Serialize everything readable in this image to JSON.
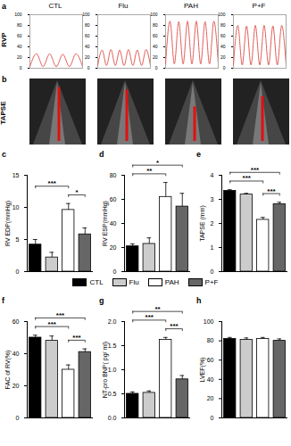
{
  "chart_data": [
    {
      "type": "line",
      "title": "a",
      "ylabel": "RVP",
      "ylim": [
        0,
        100
      ],
      "yticks": [
        0,
        20,
        40,
        60,
        80,
        100
      ],
      "color": "#e0605a",
      "series": [
        {
          "name": "CTL",
          "values": [
            3,
            27,
            3,
            27,
            3,
            26,
            3,
            27,
            3
          ]
        },
        {
          "name": "Flu",
          "values": [
            5,
            34,
            5,
            35,
            5,
            34,
            5,
            35,
            5,
            34,
            5,
            35,
            5
          ]
        },
        {
          "name": "PAH",
          "values": [
            8,
            88,
            8,
            87,
            8,
            88,
            8,
            88,
            8,
            87,
            8,
            88,
            8
          ]
        },
        {
          "name": "P+F",
          "values": [
            6,
            80,
            6,
            79,
            6,
            80,
            6,
            80,
            6,
            79,
            6,
            80,
            6
          ]
        }
      ]
    },
    {
      "type": "image",
      "title": "b",
      "ylabel": "TAPSE",
      "categories": [
        "CTL",
        "Flu",
        "PAH",
        "P+F"
      ],
      "color": "#e01010"
    },
    {
      "type": "bar",
      "title": "c",
      "ylabel": "RV EDP(mmHg)",
      "categories": [
        "CTL",
        "Flu",
        "PAH",
        "P+F"
      ],
      "values": [
        4.2,
        2.2,
        9.6,
        5.8
      ],
      "errors": [
        0.8,
        0.8,
        1.0,
        1.0
      ],
      "colors": [
        "#000000",
        "#cccccc",
        "#ffffff",
        "#666666"
      ],
      "ylim": [
        0,
        15
      ],
      "yticks": [
        0,
        5,
        10,
        15
      ],
      "significance": [
        {
          "from": "PAH",
          "to": "P+F",
          "label": "*"
        },
        {
          "from": "CTL",
          "to": "PAH",
          "label": "***"
        }
      ]
    },
    {
      "type": "bar",
      "title": "d",
      "ylabel": "RV ESP(mmHg)",
      "categories": [
        "CTL",
        "Flu",
        "PAH",
        "P+F"
      ],
      "values": [
        21,
        23,
        62,
        54
      ],
      "errors": [
        2,
        5,
        12,
        11
      ],
      "colors": [
        "#000000",
        "#cccccc",
        "#ffffff",
        "#666666"
      ],
      "ylim": [
        0,
        80
      ],
      "yticks": [
        0,
        20,
        40,
        60,
        80
      ],
      "significance": [
        {
          "from": "CTL",
          "to": "PAH",
          "label": "**"
        },
        {
          "from": "CTL",
          "to": "P+F",
          "label": "*"
        }
      ]
    },
    {
      "type": "bar",
      "title": "e",
      "ylabel": "TAPSE (mm)",
      "categories": [
        "CTL",
        "Flu",
        "PAH",
        "P+F"
      ],
      "values": [
        3.35,
        3.2,
        2.15,
        2.8
      ],
      "errors": [
        0.05,
        0.05,
        0.1,
        0.08
      ],
      "colors": [
        "#000000",
        "#cccccc",
        "#ffffff",
        "#666666"
      ],
      "ylim": [
        0,
        4
      ],
      "yticks": [
        0,
        1,
        2,
        3,
        4
      ],
      "significance": [
        {
          "from": "PAH",
          "to": "P+F",
          "label": "***"
        },
        {
          "from": "CTL",
          "to": "PAH",
          "label": "***"
        },
        {
          "from": "CTL",
          "to": "P+F",
          "label": "***"
        }
      ]
    },
    {
      "type": "bar",
      "title": "f",
      "ylabel": "FAC of RV(%)",
      "categories": [
        "CTL",
        "Flu",
        "PAH",
        "P+F"
      ],
      "values": [
        50,
        48,
        30,
        41
      ],
      "errors": [
        1.5,
        3,
        3,
        2
      ],
      "colors": [
        "#000000",
        "#cccccc",
        "#ffffff",
        "#666666"
      ],
      "ylim": [
        0,
        60
      ],
      "yticks": [
        0,
        20,
        40,
        60
      ],
      "significance": [
        {
          "from": "PAH",
          "to": "P+F",
          "label": "***"
        },
        {
          "from": "CTL",
          "to": "PAH",
          "label": "***"
        },
        {
          "from": "CTL",
          "to": "P+F",
          "label": "***"
        }
      ]
    },
    {
      "type": "bar",
      "title": "g",
      "ylabel": "NT-pro BNP( pg/ ml)",
      "categories": [
        "CTL",
        "Flu",
        "PAH",
        "P+F"
      ],
      "values": [
        0.5,
        0.52,
        1.62,
        0.8
      ],
      "errors": [
        0.04,
        0.04,
        0.05,
        0.08
      ],
      "colors": [
        "#000000",
        "#cccccc",
        "#ffffff",
        "#666666"
      ],
      "ylim": [
        0,
        2
      ],
      "yticks": [
        {
          "value": 0,
          "label": "0.0"
        },
        {
          "value": 0.5,
          "label": "0.5"
        },
        {
          "value": 1,
          "label": "1.0"
        },
        {
          "value": 1.5,
          "label": "1.5"
        },
        {
          "value": 2,
          "label": "2.0"
        }
      ],
      "significance": [
        {
          "from": "PAH",
          "to": "P+F",
          "label": "***"
        },
        {
          "from": "CTL",
          "to": "PAH",
          "label": "***"
        },
        {
          "from": "CTL",
          "to": "P+F",
          "label": "**"
        }
      ]
    },
    {
      "type": "bar",
      "title": "h",
      "ylabel": "LVEF(%)",
      "categories": [
        "CTL",
        "Flu",
        "PAH",
        "P+F"
      ],
      "values": [
        82,
        81,
        82,
        80
      ],
      "errors": [
        1.5,
        2,
        1.5,
        2
      ],
      "colors": [
        "#000000",
        "#cccccc",
        "#ffffff",
        "#666666"
      ],
      "ylim": [
        0,
        100
      ],
      "yticks": [
        0,
        20,
        40,
        60,
        80,
        100
      ]
    }
  ],
  "legend": {
    "labels": [
      "CTL",
      "Flu",
      "PAH",
      "P+F"
    ],
    "colors": [
      "#000000",
      "#cccccc",
      "#ffffff",
      "#666666"
    ]
  }
}
